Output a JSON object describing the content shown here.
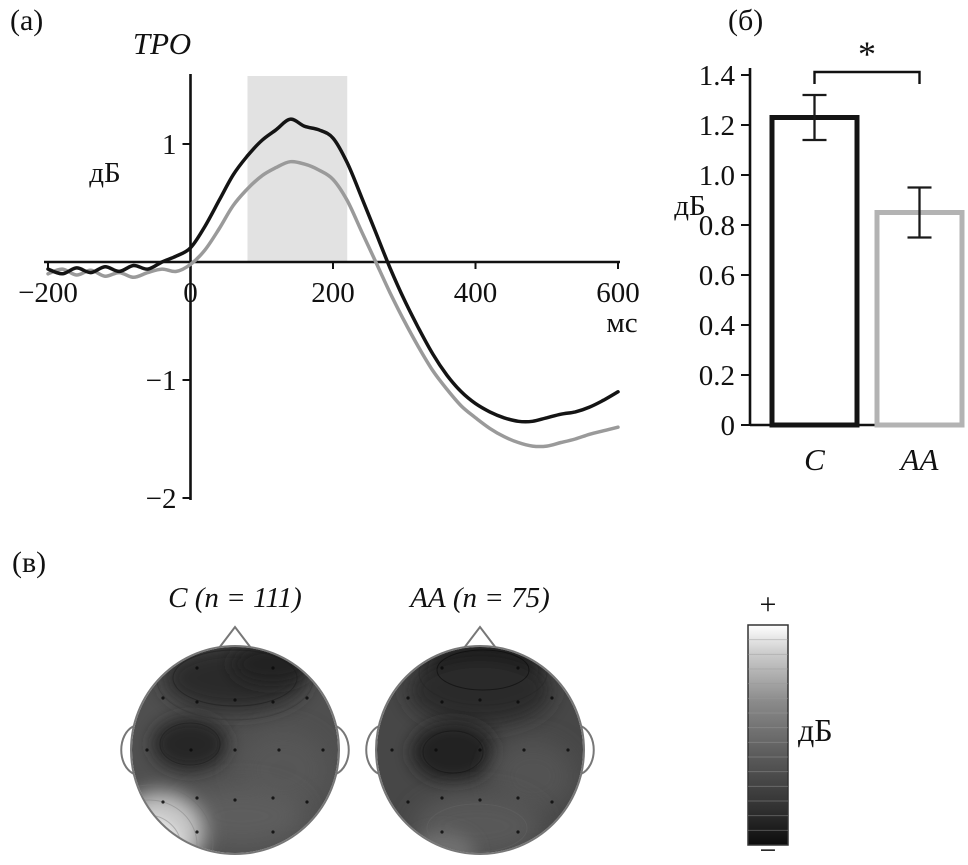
{
  "panels": {
    "a": {
      "label": "(а)"
    },
    "b": {
      "label": "(б)"
    },
    "c": {
      "label": "(в)"
    }
  },
  "chart_data": [
    {
      "id": "erp",
      "type": "line",
      "title": "ТРО",
      "ylabel": "дБ",
      "xlabel": "мс",
      "xlim": [
        -200,
        600
      ],
      "ylim": [
        -2,
        1.5
      ],
      "xticks": [
        -200,
        0,
        200,
        400,
        600
      ],
      "yticks": [
        1,
        -1,
        -2
      ],
      "highlight_region_ms": [
        80,
        220
      ],
      "series": [
        {
          "name": "C",
          "color": "#141414",
          "x0": -200,
          "dx": 20,
          "y": [
            -0.06,
            -0.1,
            -0.05,
            -0.09,
            -0.04,
            -0.08,
            -0.03,
            -0.06,
            0.0,
            0.05,
            0.12,
            0.3,
            0.52,
            0.74,
            0.9,
            1.03,
            1.12,
            1.21,
            1.15,
            1.12,
            1.05,
            0.84,
            0.55,
            0.25,
            -0.05,
            -0.32,
            -0.56,
            -0.78,
            -0.96,
            -1.1,
            -1.2,
            -1.27,
            -1.32,
            -1.35,
            -1.35,
            -1.32,
            -1.29,
            -1.27,
            -1.23,
            -1.17,
            -1.1
          ]
        },
        {
          "name": "АА",
          "color": "#9a9a9a",
          "x0": -200,
          "dx": 20,
          "y": [
            -0.1,
            -0.06,
            -0.11,
            -0.07,
            -0.12,
            -0.09,
            -0.13,
            -0.09,
            -0.06,
            -0.08,
            -0.02,
            0.1,
            0.28,
            0.48,
            0.62,
            0.73,
            0.8,
            0.85,
            0.83,
            0.78,
            0.7,
            0.52,
            0.26,
            0.0,
            -0.26,
            -0.5,
            -0.72,
            -0.92,
            -1.08,
            -1.22,
            -1.32,
            -1.41,
            -1.48,
            -1.53,
            -1.56,
            -1.56,
            -1.53,
            -1.5,
            -1.46,
            -1.43,
            -1.4
          ]
        }
      ]
    },
    {
      "id": "bars",
      "type": "bar",
      "ylabel": "дБ",
      "categories": [
        "C",
        "АА"
      ],
      "values": [
        1.23,
        0.85
      ],
      "errors": [
        0.09,
        0.1
      ],
      "bar_edge_colors": [
        "#141414",
        "#b3b3b3"
      ],
      "ylim": [
        0,
        1.4
      ],
      "yticks": [
        "0",
        "0.2",
        "0.4",
        "0.6",
        "0.8",
        "1.0",
        "1.2",
        "1.4"
      ],
      "significance_label": "*"
    },
    {
      "id": "topomaps",
      "type": "heatmap",
      "maps": [
        {
          "label": "C (n = 111)"
        },
        {
          "label": "АА (n = 75)"
        }
      ],
      "colorbar": {
        "top_label": "+",
        "bottom_label": "−",
        "label": "дБ"
      }
    }
  ]
}
